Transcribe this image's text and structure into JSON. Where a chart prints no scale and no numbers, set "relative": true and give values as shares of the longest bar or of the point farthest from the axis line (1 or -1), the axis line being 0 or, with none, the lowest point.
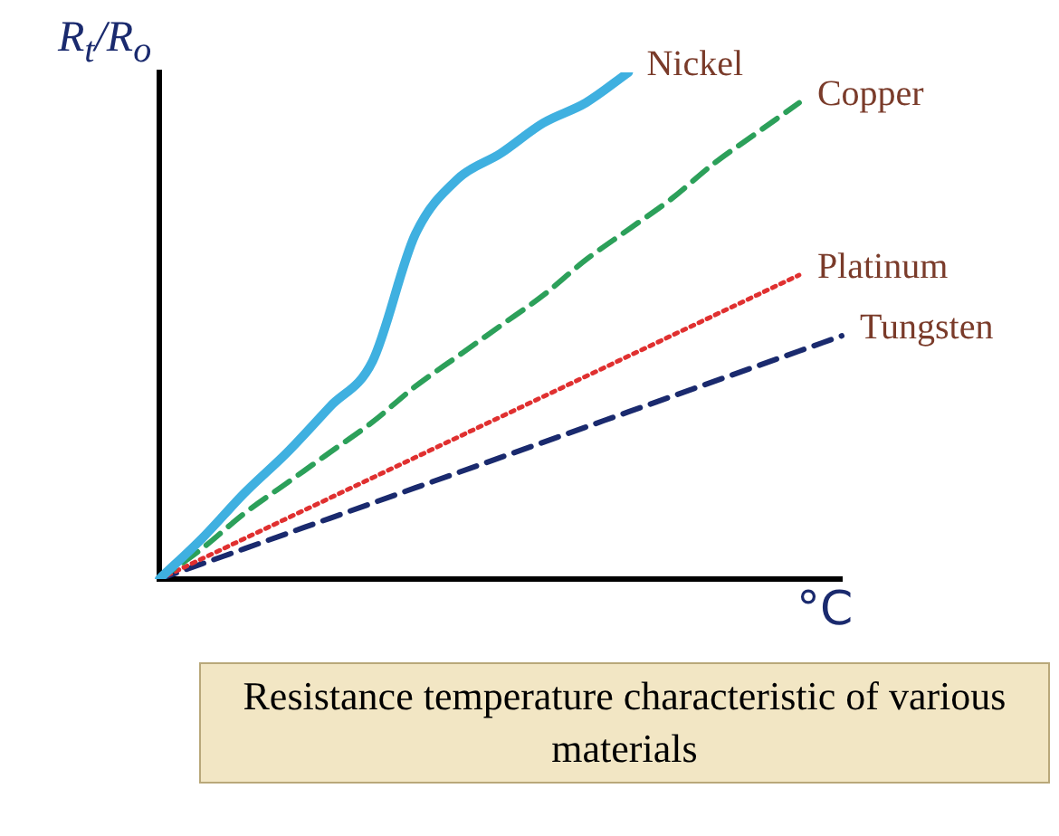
{
  "chart_data": {
    "type": "line",
    "relative": true,
    "ylabel": "R$_{t}$/R$_{o}$",
    "xlabel": "°C",
    "legend": false,
    "grid": false,
    "marker": "none",
    "categories": [
      null,
      null,
      null,
      null,
      null,
      null,
      null,
      null,
      null,
      null,
      null,
      null,
      null,
      null,
      null,
      null,
      null
    ],
    "series": [
      {
        "name": "Nickel",
        "color": "#3fb0e0",
        "line_style": "solid",
        "values": [
          0,
          0.08,
          0.17,
          0.25,
          0.34,
          0.43,
          0.68,
          0.79,
          0.84,
          0.9,
          0.94,
          1,
          null,
          null,
          null,
          null,
          null
        ]
      },
      {
        "name": "Copper",
        "color": "#2ca05a",
        "line_style": "dashed",
        "values": [
          0,
          0.06,
          0.13,
          0.19,
          0.25,
          0.31,
          0.38,
          0.44,
          0.5,
          0.56,
          0.63,
          0.69,
          0.75,
          0.82,
          0.88,
          0.94,
          null
        ]
      },
      {
        "name": "Platinum",
        "color": "#e03030",
        "line_style": "dotted",
        "values": [
          0,
          0.04,
          0.08,
          0.12,
          0.16,
          0.2,
          0.24,
          0.28,
          0.32,
          0.36,
          0.4,
          0.44,
          0.48,
          0.52,
          0.56,
          0.6,
          null
        ]
      },
      {
        "name": "Tungsten",
        "color": "#1a2a6e",
        "line_style": "dashed",
        "values": [
          0,
          0.03,
          0.06,
          0.09,
          0.12,
          0.15,
          0.18,
          0.21,
          0.24,
          0.27,
          0.3,
          0.33,
          0.36,
          0.39,
          0.42,
          0.45,
          0.48
        ]
      }
    ],
    "annotations": [
      "Resistance temperature characteristic of various materials"
    ]
  }
}
